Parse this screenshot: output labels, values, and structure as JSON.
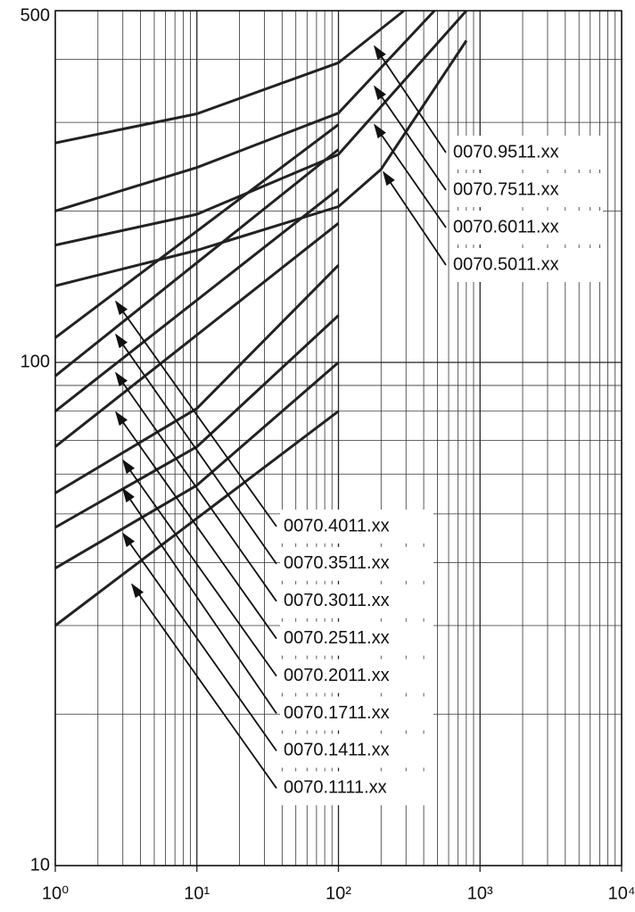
{
  "chart_data": {
    "type": "line",
    "log_x": true,
    "log_y": true,
    "grid": true,
    "minor_grid": true,
    "xlim": [
      1,
      10000
    ],
    "ylim": [
      10,
      500
    ],
    "xticks": [
      {
        "value": 1,
        "label": "10⁰"
      },
      {
        "value": 10,
        "label": "10¹"
      },
      {
        "value": 100,
        "label": "10²"
      },
      {
        "value": 1000,
        "label": "10³"
      },
      {
        "value": 10000,
        "label": "10⁴"
      }
    ],
    "yticks": [
      10,
      100,
      500
    ],
    "series": [
      {
        "name": "0070.9511.xx",
        "color": "#222222",
        "x": [
          1,
          10,
          100,
          290
        ],
        "values": [
          273,
          312,
          394,
          500
        ]
      },
      {
        "name": "0070.7511.xx",
        "color": "#222222",
        "x": [
          1,
          10,
          100,
          476
        ],
        "values": [
          200,
          244,
          313,
          500
        ]
      },
      {
        "name": "0070.6011.xx",
        "color": "#222222",
        "x": [
          1,
          10,
          100,
          800
        ],
        "values": [
          171,
          197,
          259,
          500
        ]
      },
      {
        "name": "0070.5011.xx",
        "color": "#222222",
        "x": [
          1,
          10,
          100,
          200,
          800
        ],
        "values": [
          142,
          167,
          204,
          242,
          436
        ]
      },
      {
        "name": "0070.4011.xx",
        "color": "#222222",
        "x": [
          1,
          100
        ],
        "values": [
          112,
          297
        ]
      },
      {
        "name": "0070.3511.xx",
        "color": "#222222",
        "x": [
          1,
          100
        ],
        "values": [
          94,
          265
        ]
      },
      {
        "name": "0070.3011.xx",
        "color": "#222222",
        "x": [
          1,
          100
        ],
        "values": [
          80,
          221
        ]
      },
      {
        "name": "0070.2511.xx",
        "color": "#222222",
        "x": [
          1,
          100
        ],
        "values": [
          68,
          189
        ]
      },
      {
        "name": "0070.2011.xx",
        "color": "#222222",
        "x": [
          1,
          10,
          100
        ],
        "values": [
          55,
          81,
          156
        ]
      },
      {
        "name": "0070.1711.xx",
        "color": "#222222",
        "x": [
          1,
          10,
          100
        ],
        "values": [
          47,
          68,
          124
        ]
      },
      {
        "name": "0070.1411.xx",
        "color": "#222222",
        "x": [
          1,
          10,
          100
        ],
        "values": [
          39,
          57,
          100
        ]
      },
      {
        "name": "0070.1111.xx",
        "color": "#222222",
        "x": [
          1,
          10,
          100
        ],
        "values": [
          30,
          49,
          80
        ]
      }
    ]
  }
}
